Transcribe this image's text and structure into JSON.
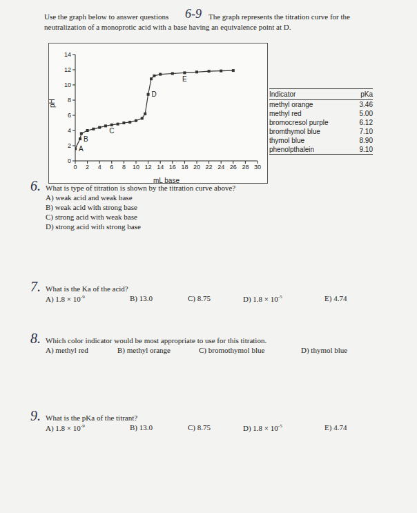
{
  "header": {
    "prefix": "Use the graph below to answer questions",
    "handwritten": "6-9",
    "line1_rest": "The graph represents the titration curve for the",
    "line2": "neutralization of a monoprotic acid with a base having an equivalence point at D."
  },
  "chart_data": {
    "type": "line",
    "x": [
      0,
      0.8,
      1,
      2,
      3,
      4,
      5,
      6,
      7,
      8,
      9,
      10,
      11,
      11.5,
      12,
      12.5,
      13,
      14,
      16,
      18,
      20,
      22,
      24,
      26
    ],
    "values": [
      1.6,
      2.9,
      3.6,
      4.0,
      4.2,
      4.4,
      4.6,
      4.74,
      4.85,
      5.0,
      5.1,
      5.3,
      5.6,
      6.2,
      8.75,
      10.8,
      11.2,
      11.4,
      11.5,
      11.6,
      11.7,
      11.8,
      11.85,
      11.9
    ],
    "color": "#333333",
    "marker": "square",
    "line_style": "solid",
    "xlabel": "mL base",
    "ylabel": "pH",
    "xlim": [
      0,
      30
    ],
    "ylim": [
      0,
      14
    ],
    "xticks": [
      0,
      2,
      4,
      6,
      8,
      10,
      12,
      14,
      16,
      18,
      20,
      22,
      24,
      26,
      28,
      30
    ],
    "yticks": [
      0,
      2,
      4,
      6,
      8,
      10,
      12,
      14
    ],
    "grid": false,
    "point_labels": [
      {
        "label": "A",
        "x": 0,
        "y": 1.6
      },
      {
        "label": "B",
        "x": 0.8,
        "y": 2.9
      },
      {
        "label": "C",
        "x": 6,
        "y": 4.74
      },
      {
        "label": "D",
        "x": 12,
        "y": 8.75
      },
      {
        "label": "E",
        "x": 18,
        "y": 11.6
      }
    ]
  },
  "indicator_table": {
    "header": [
      "Indicator",
      "pKa"
    ],
    "rows": [
      [
        "methyl orange",
        "3.46"
      ],
      [
        "methyl red",
        "5.00"
      ],
      [
        "bromocresol purple",
        "6.12"
      ],
      [
        "bromthymol blue",
        "7.10"
      ],
      [
        "thymol blue",
        "8.90"
      ],
      [
        "phenolpthalein",
        "9.10"
      ]
    ]
  },
  "questions": [
    {
      "number": "6.",
      "prompt": "What is type of titration is shown by the titration curve above?",
      "options": [
        {
          "letter": "A)",
          "text": "weak acid and weak base"
        },
        {
          "letter": "B)",
          "text": "weak acid with strong base"
        },
        {
          "letter": "C)",
          "text": "strong acid with weak base"
        },
        {
          "letter": "D)",
          "text": "strong acid with strong base"
        }
      ]
    },
    {
      "number": "7.",
      "prompt": "What is the Ka of the acid?",
      "options": [
        {
          "letter": "A)",
          "text": "1.8 × 10",
          "sup": "-9"
        },
        {
          "letter": "B)",
          "text": "13.0"
        },
        {
          "letter": "C)",
          "text": "8.75"
        },
        {
          "letter": "D)",
          "text": "1.8 × 10",
          "sup": "-5"
        },
        {
          "letter": "E)",
          "text": "4.74"
        }
      ]
    },
    {
      "number": "8.",
      "prompt": "Which color indicator would be most appropriate to use for this titration.",
      "options": [
        {
          "letter": "A)",
          "text": "methyl red"
        },
        {
          "letter": "B)",
          "text": "methyl orange"
        },
        {
          "letter": "C)",
          "text": "bromothymol blue"
        },
        {
          "letter": "D)",
          "text": "thymol blue"
        }
      ]
    },
    {
      "number": "9.",
      "prompt": "What is the pKa of the titrant?",
      "options": [
        {
          "letter": "A)",
          "text": "1.8 × 10",
          "sup": "-9"
        },
        {
          "letter": "B)",
          "text": "13.0"
        },
        {
          "letter": "C)",
          "text": "8.75"
        },
        {
          "letter": "D)",
          "text": "1.8 × 10",
          "sup": "-5"
        },
        {
          "letter": "E)",
          "text": "4.74"
        }
      ]
    }
  ]
}
